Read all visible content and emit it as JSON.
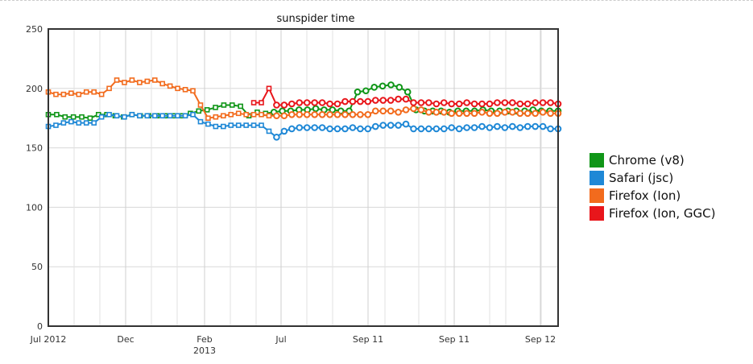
{
  "chart_data": {
    "type": "line",
    "title": "sunspider time",
    "xlabel": "",
    "ylabel": "",
    "ylim": [
      0,
      250
    ],
    "y_ticks": [
      "0",
      "50",
      "100",
      "150",
      "200",
      "250"
    ],
    "x_tick_labels": [
      {
        "label": "Jul 2012",
        "sub": ""
      },
      {
        "label": "Dec",
        "sub": ""
      },
      {
        "label": "Feb",
        "sub": "2013"
      },
      {
        "label": "Jul",
        "sub": ""
      },
      {
        "label": "Sep 11",
        "sub": ""
      },
      {
        "label": "Sep 11",
        "sub": ""
      },
      {
        "label": "Sep 12",
        "sub": ""
      }
    ],
    "grid": true,
    "legend_position": "right",
    "series": [
      {
        "name": "Chrome (v8)",
        "color": "#109618",
        "values": [
          178,
          178,
          176,
          176,
          176,
          175,
          178,
          178,
          177,
          176,
          178,
          177,
          177,
          177,
          177,
          177,
          177,
          179,
          181,
          182,
          184,
          186,
          186,
          185,
          177,
          180,
          179,
          180,
          181,
          181,
          182,
          182,
          183,
          182,
          182,
          181,
          181,
          197,
          198,
          201,
          202,
          203,
          201,
          197,
          182,
          181,
          181,
          181,
          180,
          181,
          181,
          181,
          182,
          181,
          181,
          181,
          181,
          181,
          182,
          181,
          181,
          181
        ]
      },
      {
        "name": "Safari (jsc)",
        "color": "#1f88d6",
        "values": [
          168,
          169,
          171,
          172,
          171,
          171,
          171,
          176,
          178,
          177,
          176,
          178,
          177,
          177,
          177,
          177,
          177,
          177,
          177,
          178,
          172,
          170,
          168,
          168,
          169,
          169,
          169,
          169,
          169,
          164,
          159,
          164,
          166,
          167,
          167,
          167,
          167,
          166,
          166,
          166,
          167,
          166,
          166,
          168,
          169,
          169,
          169,
          170,
          166,
          166,
          166,
          166,
          166,
          167,
          166,
          167,
          167,
          168,
          167,
          168,
          167,
          168,
          167,
          168,
          168,
          168,
          166,
          166
        ]
      },
      {
        "name": "Firefox (Ion)",
        "color": "#f26b1d",
        "values": [
          197,
          195,
          195,
          196,
          195,
          197,
          197,
          195,
          200,
          207,
          205,
          207,
          205,
          206,
          207,
          204,
          202,
          200,
          199,
          198,
          186,
          175,
          176,
          177,
          178,
          179,
          178,
          178,
          178,
          177,
          177,
          177,
          178,
          178,
          178,
          178,
          178,
          178,
          178,
          178,
          178,
          178,
          178,
          181,
          181,
          181,
          180,
          182,
          183,
          182,
          180,
          180,
          180,
          179,
          179,
          179,
          179,
          180,
          179,
          179,
          180,
          180,
          179,
          179,
          179,
          180,
          179,
          179
        ]
      },
      {
        "name": "Firefox (Ion, GGC)",
        "color": "#e8161b",
        "values": [
          null,
          null,
          null,
          null,
          null,
          null,
          null,
          null,
          null,
          null,
          null,
          null,
          null,
          null,
          null,
          null,
          null,
          null,
          null,
          null,
          null,
          null,
          null,
          null,
          null,
          null,
          null,
          188,
          188,
          200,
          186,
          186,
          187,
          188,
          188,
          188,
          188,
          187,
          187,
          189,
          189,
          189,
          189,
          190,
          190,
          190,
          191,
          191,
          188,
          188,
          188,
          187,
          188,
          187,
          187,
          188,
          187,
          187,
          187,
          188,
          188,
          188,
          187,
          187,
          188,
          188,
          188,
          187
        ]
      }
    ]
  }
}
